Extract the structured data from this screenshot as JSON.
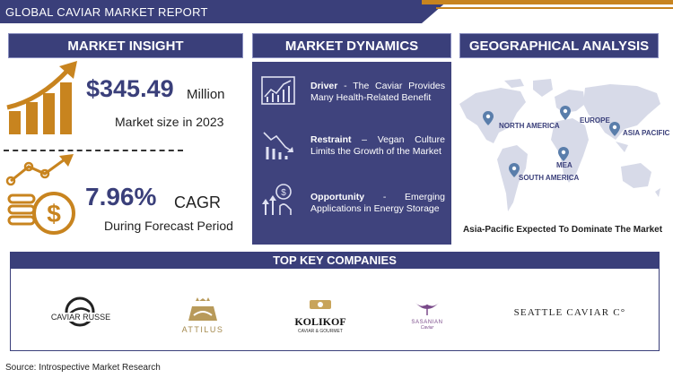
{
  "header": {
    "title": "GLOBAL CAVIAR MARKET REPORT"
  },
  "market_insight": {
    "heading": "MARKET INSIGHT",
    "market_size_value": "$345.49",
    "market_size_unit": "Million",
    "market_size_caption": "Market size in 2023",
    "cagr_value": "7.96%",
    "cagr_unit": "CAGR",
    "cagr_caption": "During Forecast Period"
  },
  "market_dynamics": {
    "heading": "MARKET DYNAMICS",
    "items": [
      {
        "label": "Driver",
        "text": " - The Caviar Provides Many Health-Related Benefit",
        "icon": "chart-growth-icon"
      },
      {
        "label": "Restraint",
        "text": " – Vegan Culture Limits the Growth of the Market",
        "icon": "chart-decline-icon"
      },
      {
        "label": "Opportunity",
        "text": " - Emerging Applications in Energy Storage",
        "icon": "opportunity-icon"
      }
    ]
  },
  "geographical_analysis": {
    "heading": "GEOGRAPHICAL ANALYSIS",
    "regions": [
      "NORTH AMERICA",
      "EUROPE",
      "ASIA PACIFIC",
      "MEA",
      "SOUTH AMERICA"
    ],
    "caption": "Asia-Pacific Expected To Dominate The Market"
  },
  "companies": {
    "heading": "TOP KEY COMPANIES",
    "logos": [
      "CAVIAR RUSSE",
      "ATTILUS",
      "KOLIKOF",
      "CAVIAR & GOURMET",
      "SASANIAN",
      "Caviar",
      "SEATTLE CAVIAR C°"
    ]
  },
  "source": "Source: Introspective Market Research",
  "colors": {
    "primary": "#3a3f7a",
    "accent": "#c8841f"
  }
}
